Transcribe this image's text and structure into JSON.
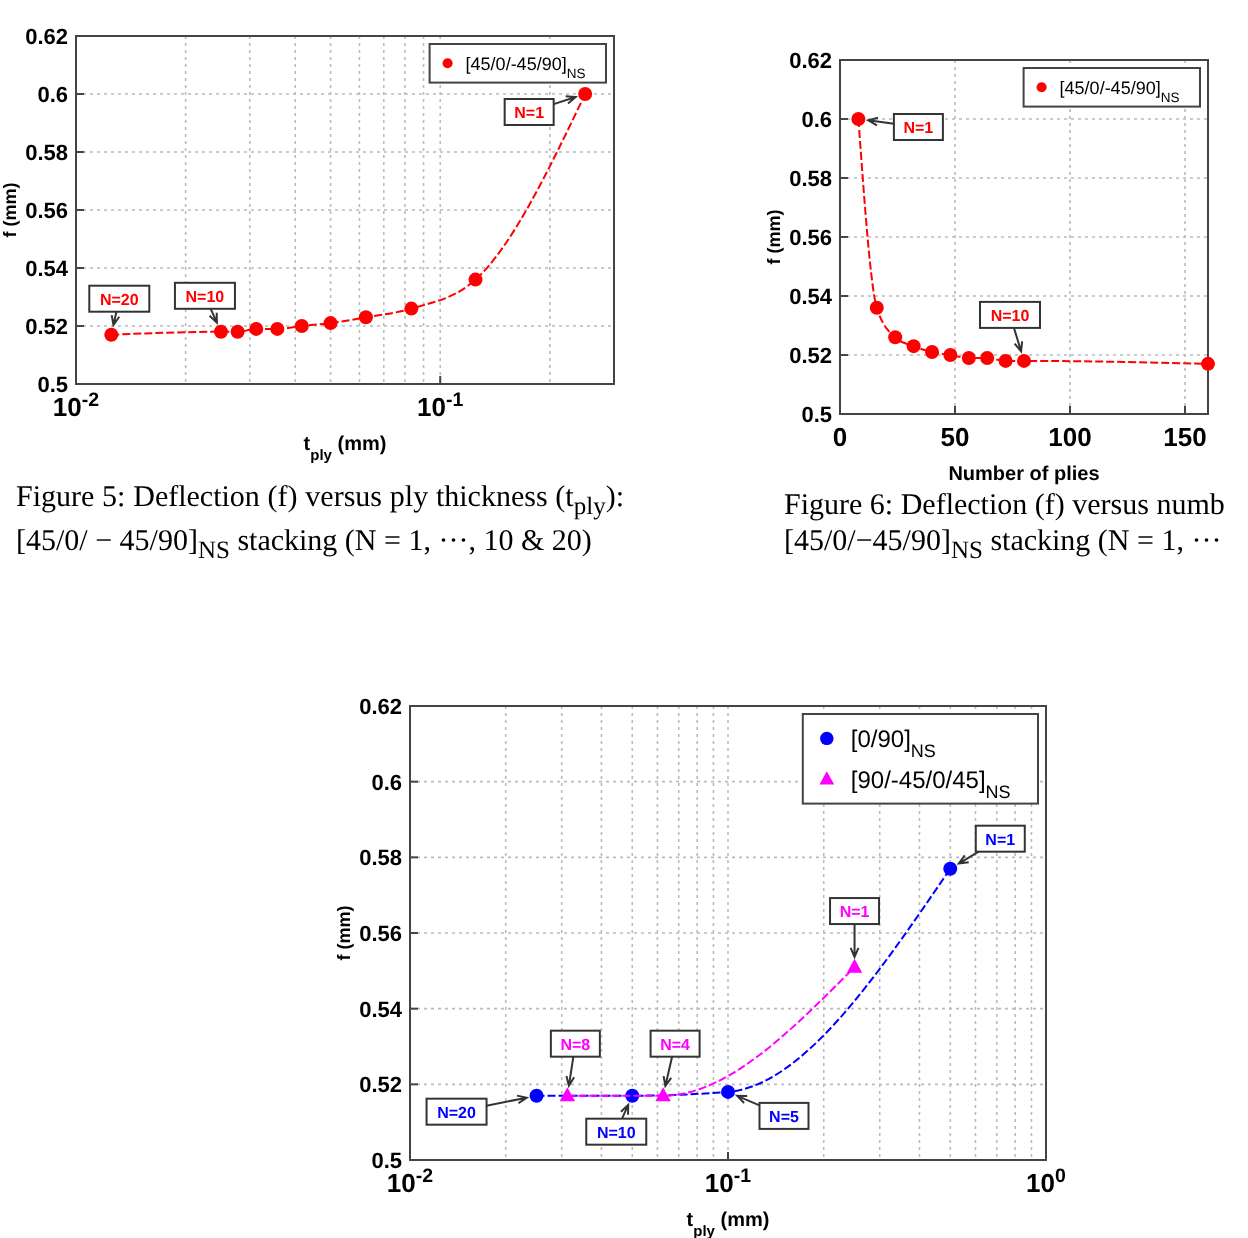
{
  "chart_data": [
    {
      "type": "line",
      "xlabel": "t$_{ply}$ (mm)",
      "ylabel": "f (mm)",
      "log": "x",
      "xlim": [
        0.01,
        0.3
      ],
      "xticks": [
        {
          "value": 0.01,
          "label": "10$^{-2}$"
        },
        {
          "value": 0.1,
          "label": "10$^{-1}$"
        }
      ],
      "ylim": [
        0.5,
        0.62
      ],
      "yticks": [
        0.5,
        0.52,
        0.54,
        0.56,
        0.58,
        0.6,
        0.62
      ],
      "grid": true,
      "legend": "top right",
      "line_style": "dashed",
      "series": [
        {
          "name": "[45/0/-45/90]$_{NS}$",
          "color": "#ff0000",
          "marker": "circle",
          "x": [
            0.0125,
            0.025,
            0.02778,
            0.03125,
            0.03571,
            0.04167,
            0.05,
            0.0625,
            0.08333,
            0.125,
            0.25
          ],
          "values": [
            0.517,
            0.518,
            0.518,
            0.519,
            0.519,
            0.52,
            0.521,
            0.523,
            0.526,
            0.536,
            0.6
          ]
        }
      ],
      "annotations": [
        {
          "text": "N=1",
          "x": 0.25,
          "y": 0.6
        },
        {
          "text": "N=10",
          "x": 0.025,
          "y": 0.518
        },
        {
          "text": "N=20",
          "x": 0.0125,
          "y": 0.517
        },
        "Figure 5: Deflection (f) versus ply thickness (t$_{ply}$): [45/0/ − 45/90]$_{NS}$ stacking (N = 1, ···, 10 & 20)"
      ]
    },
    {
      "type": "line",
      "xlabel": "Number of plies",
      "ylabel": "f (mm)",
      "xlim": [
        0,
        160
      ],
      "xticks": [
        0,
        50,
        100,
        150
      ],
      "ylim": [
        0.5,
        0.62
      ],
      "yticks": [
        0.5,
        0.52,
        0.54,
        0.56,
        0.58,
        0.6,
        0.62
      ],
      "grid": true,
      "legend": "top right",
      "line_style": "dashed",
      "series": [
        {
          "name": "[45/0/-45/90]$_{NS}$",
          "color": "#ff0000",
          "marker": "circle",
          "x": [
            8,
            16,
            24,
            32,
            40,
            48,
            56,
            64,
            72,
            80,
            160
          ],
          "values": [
            0.6,
            0.536,
            0.526,
            0.523,
            0.521,
            0.52,
            0.519,
            0.519,
            0.518,
            0.518,
            0.517
          ]
        }
      ],
      "annotations": [
        {
          "text": "N=1",
          "x": 8,
          "y": 0.6
        },
        {
          "text": "N=10",
          "x": 80,
          "y": 0.518
        },
        "Figure 6: Deflection (f) versus numb",
        "[45/0/−45/90]$_{NS}$ stacking (N = 1, ···"
      ]
    },
    {
      "type": "line",
      "xlabel": "t$_{ply}$ (mm)",
      "ylabel": "f (mm)",
      "log": "x",
      "xlim": [
        0.01,
        1
      ],
      "xticks": [
        {
          "value": 0.01,
          "label": "10$^{-2}$"
        },
        {
          "value": 0.1,
          "label": "10$^{-1}$"
        },
        {
          "value": 1,
          "label": "10$^{0}$"
        }
      ],
      "ylim": [
        0.5,
        0.62
      ],
      "yticks": [
        0.5,
        0.52,
        0.54,
        0.56,
        0.58,
        0.6,
        0.62
      ],
      "grid": true,
      "legend": "top right",
      "line_style": "dashed",
      "series": [
        {
          "name": "[0/90]$_{NS}$",
          "color": "#0000ff",
          "marker": "circle",
          "x": [
            0.025,
            0.05,
            0.1,
            0.5
          ],
          "values": [
            0.517,
            0.517,
            0.518,
            0.577
          ]
        },
        {
          "name": "[90/-45/0/45]$_{NS}$",
          "color": "#ff00ff",
          "marker": "triangle",
          "x": [
            0.03125,
            0.0625,
            0.25
          ],
          "values": [
            0.517,
            0.517,
            0.551
          ]
        }
      ],
      "annotations": [
        {
          "text": "N=20",
          "x": 0.025,
          "y": 0.517
        },
        {
          "text": "N=8",
          "x": 0.03125,
          "y": 0.517
        },
        {
          "text": "N=10",
          "x": 0.05,
          "y": 0.517
        },
        {
          "text": "N=4",
          "x": 0.0625,
          "y": 0.517
        },
        {
          "text": "N=5",
          "x": 0.1,
          "y": 0.518
        },
        {
          "text": "N=1",
          "x": 0.25,
          "y": 0.551
        },
        {
          "text": "N=1",
          "x": 0.5,
          "y": 0.577
        }
      ]
    }
  ]
}
